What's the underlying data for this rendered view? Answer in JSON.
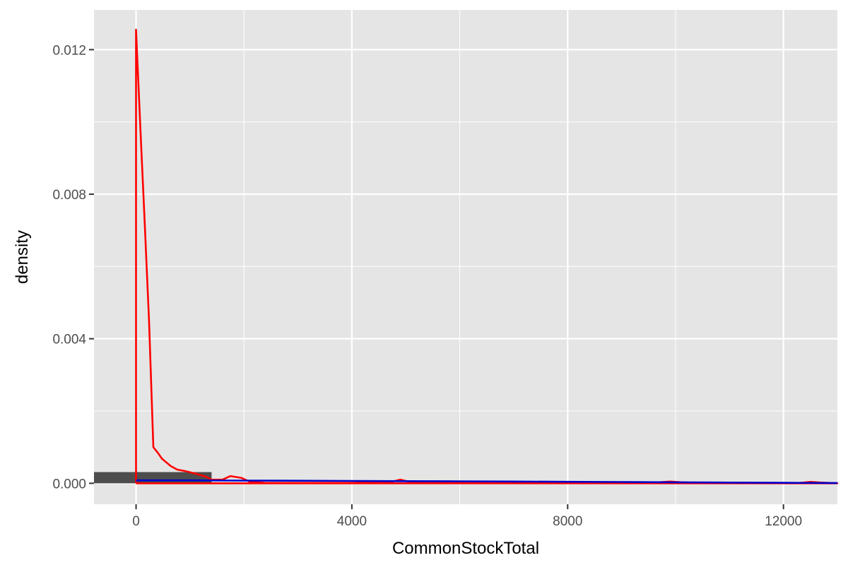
{
  "chart_data": {
    "type": "histogram-density",
    "xlabel": "CommonStockTotal",
    "ylabel": "density",
    "xlim": [
      -780,
      13000
    ],
    "ylim": [
      -0.00058,
      0.0131
    ],
    "x_ticks": [
      0,
      4000,
      8000,
      12000
    ],
    "x_tick_labels": [
      "0",
      "4000",
      "8000",
      "12000"
    ],
    "y_ticks": [
      0.0,
      0.004,
      0.008,
      0.012
    ],
    "y_tick_labels": [
      "0.000",
      "0.004",
      "0.008",
      "0.012"
    ],
    "grid": true,
    "colors": {
      "panel": "#e5e5e5",
      "grid": "#ffffff",
      "bar": "#4d4d4d",
      "density_curve": "#ff0000",
      "normal_curve": "#0000cc"
    },
    "histogram": {
      "bins": [
        {
          "x0": -1400,
          "x1": 1400,
          "density": 0.00031
        },
        {
          "x0": 1400,
          "x1": 4200,
          "density": 0.0
        },
        {
          "x0": 4200,
          "x1": 7000,
          "density": 0.0
        },
        {
          "x0": 7000,
          "x1": 9800,
          "density": 0.0
        },
        {
          "x0": 9800,
          "x1": 12600,
          "density": 0.0
        }
      ]
    },
    "series": [
      {
        "kind": "density",
        "points": [
          [
            0,
            0.0
          ],
          [
            0,
            0.01255
          ],
          [
            80,
            0.0098
          ],
          [
            160,
            0.0072
          ],
          [
            240,
            0.0045
          ],
          [
            320,
            0.001
          ],
          [
            400,
            0.00085
          ],
          [
            480,
            0.00068
          ],
          [
            560,
            0.00058
          ],
          [
            640,
            0.00048
          ],
          [
            760,
            0.00038
          ],
          [
            900,
            0.00034
          ],
          [
            1100,
            0.00027
          ],
          [
            1300,
            0.00018
          ],
          [
            1400,
            0.0001
          ],
          [
            1600,
            0.0001
          ],
          [
            1750,
            0.0002
          ],
          [
            1950,
            0.00015
          ],
          [
            2100,
            5e-05
          ],
          [
            2400,
            1e-05
          ],
          [
            3000,
            1e-05
          ],
          [
            4000,
            1e-05
          ],
          [
            4700,
            3e-05
          ],
          [
            4900,
            0.0001
          ],
          [
            5100,
            3e-05
          ],
          [
            5500,
            1e-05
          ],
          [
            7000,
            1e-05
          ],
          [
            9500,
            1e-05
          ],
          [
            9700,
            3e-05
          ],
          [
            9900,
            5e-05
          ],
          [
            10100,
            3e-05
          ],
          [
            10400,
            1e-05
          ],
          [
            10600,
            2e-05
          ],
          [
            10800,
            1e-05
          ],
          [
            12300,
            1e-05
          ],
          [
            12500,
            4e-05
          ],
          [
            12700,
            2e-05
          ],
          [
            13000,
            0.0
          ],
          [
            13000,
            0.0
          ],
          [
            0,
            0.0
          ]
        ]
      },
      {
        "kind": "normal",
        "points": [
          [
            0,
            8e-05
          ],
          [
            1000,
            8e-05
          ],
          [
            2000,
            7.5e-05
          ],
          [
            3000,
            7e-05
          ],
          [
            4000,
            6.5e-05
          ],
          [
            5000,
            6e-05
          ],
          [
            6000,
            5.5e-05
          ],
          [
            7000,
            5e-05
          ],
          [
            8000,
            4.2e-05
          ],
          [
            9000,
            3.5e-05
          ],
          [
            10000,
            2.8e-05
          ],
          [
            11000,
            2e-05
          ],
          [
            12000,
            1.4e-05
          ],
          [
            13000,
            9e-06
          ]
        ]
      }
    ]
  }
}
